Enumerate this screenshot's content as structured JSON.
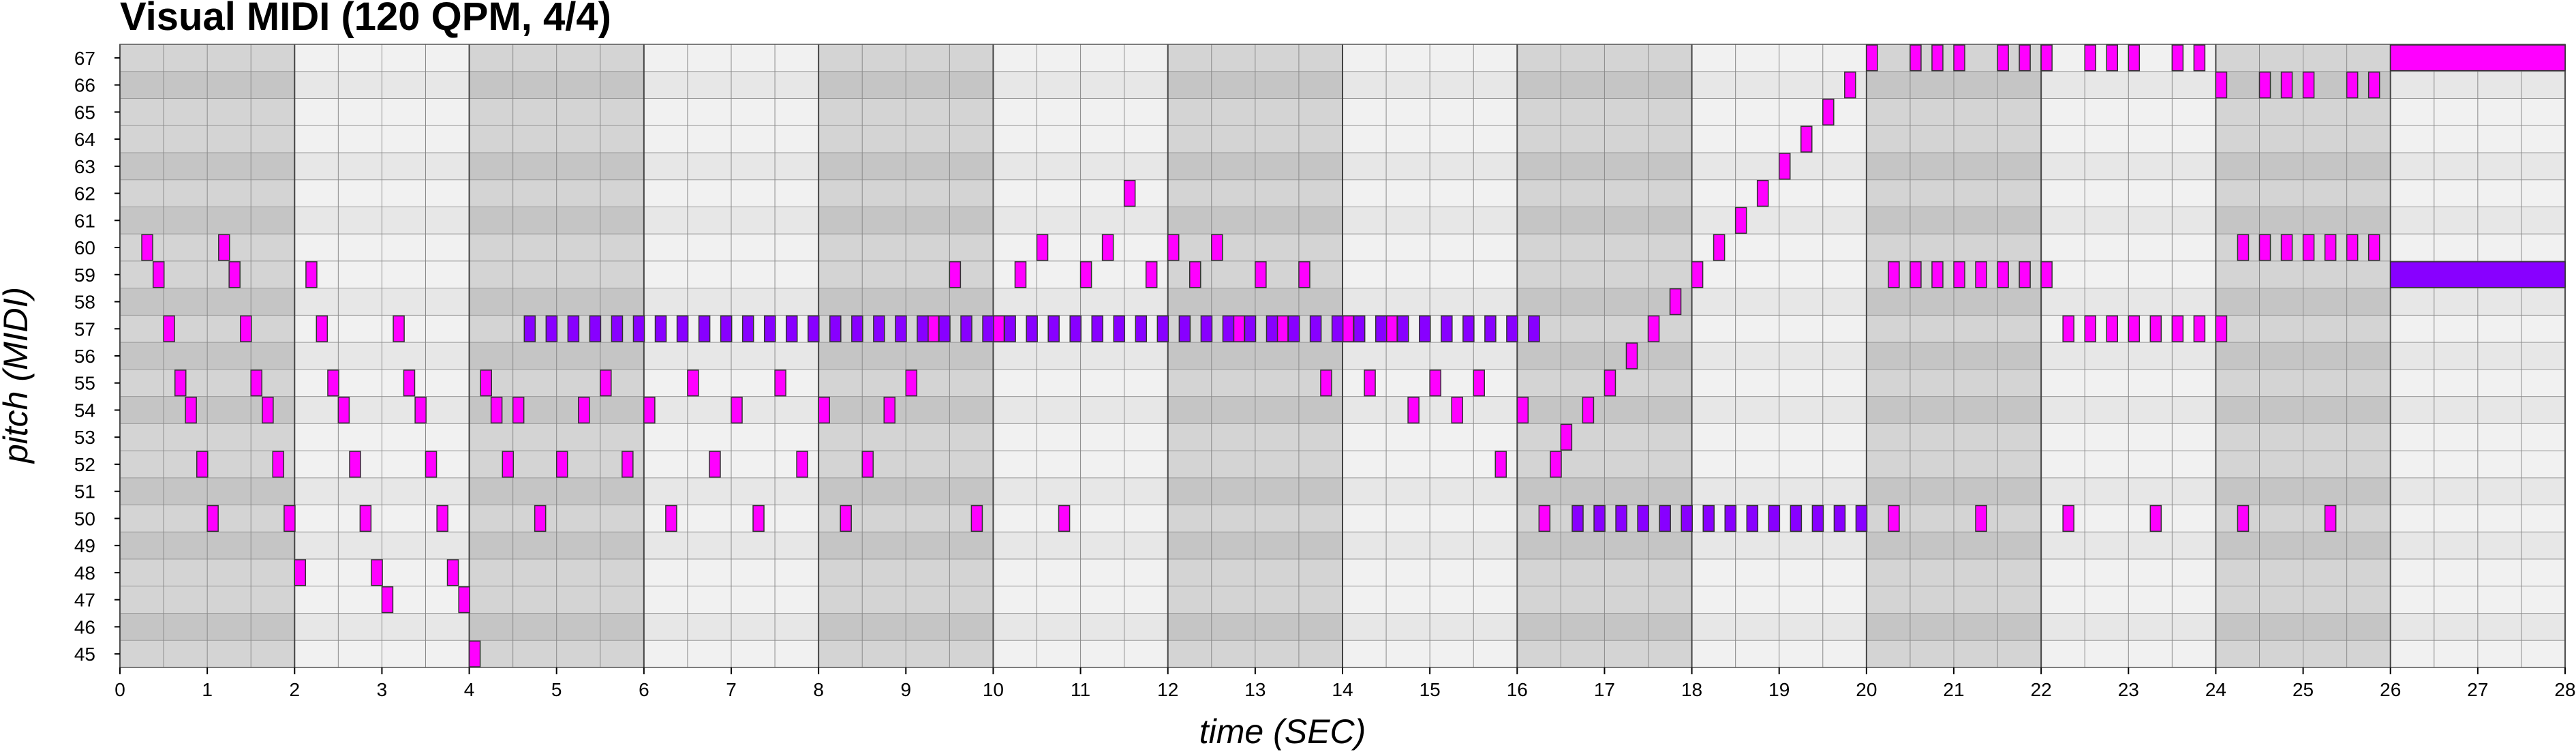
{
  "chart_data": {
    "type": "piano-roll",
    "title": "Visual MIDI (120 QPM, 4/4)",
    "xlabel": "time (SEC)",
    "ylabel": "pitch (MIDI)",
    "xlim": [
      0,
      28
    ],
    "ylim": [
      45,
      67
    ],
    "x_ticks": [
      0,
      1,
      2,
      3,
      4,
      5,
      6,
      7,
      8,
      9,
      10,
      11,
      12,
      13,
      14,
      15,
      16,
      17,
      18,
      19,
      20,
      21,
      22,
      23,
      24,
      25,
      26,
      27,
      28
    ],
    "y_ticks": [
      45,
      46,
      47,
      48,
      49,
      50,
      51,
      52,
      53,
      54,
      55,
      56,
      57,
      58,
      59,
      60,
      61,
      62,
      63,
      64,
      65,
      66,
      67
    ],
    "bar_length_sec": 2,
    "beat_length_sec": 0.5,
    "colors": {
      "note_magenta": "#ff00ff",
      "note_violet": "#8800ff",
      "note_border": "#333333",
      "row_light": "#e5e5e5",
      "row_dark": "#d3d3d3",
      "bar_shade": "#707070"
    },
    "series": [
      {
        "color": "magenta",
        "notes": [
          {
            "t": 0.25,
            "p": 60
          },
          {
            "t": 0.38,
            "p": 59
          },
          {
            "t": 0.5,
            "p": 57
          },
          {
            "t": 0.63,
            "p": 55
          },
          {
            "t": 0.75,
            "p": 54
          },
          {
            "t": 0.88,
            "p": 52
          },
          {
            "t": 1.0,
            "p": 50
          },
          {
            "t": 1.13,
            "p": 60
          },
          {
            "t": 1.25,
            "p": 59
          },
          {
            "t": 1.38,
            "p": 57
          },
          {
            "t": 1.5,
            "p": 55
          },
          {
            "t": 1.63,
            "p": 54
          },
          {
            "t": 1.75,
            "p": 52
          },
          {
            "t": 1.88,
            "p": 50
          },
          {
            "t": 2.0,
            "p": 48
          },
          {
            "t": 2.13,
            "p": 59
          },
          {
            "t": 2.25,
            "p": 57
          },
          {
            "t": 2.38,
            "p": 55
          },
          {
            "t": 2.5,
            "p": 54
          },
          {
            "t": 2.63,
            "p": 52
          },
          {
            "t": 2.75,
            "p": 50
          },
          {
            "t": 2.88,
            "p": 48
          },
          {
            "t": 3.0,
            "p": 47
          },
          {
            "t": 3.13,
            "p": 57
          },
          {
            "t": 3.25,
            "p": 55
          },
          {
            "t": 3.38,
            "p": 54
          },
          {
            "t": 3.5,
            "p": 52
          },
          {
            "t": 3.63,
            "p": 50
          },
          {
            "t": 3.75,
            "p": 48
          },
          {
            "t": 3.88,
            "p": 47
          },
          {
            "t": 4.0,
            "p": 45
          },
          {
            "t": 4.13,
            "p": 55
          },
          {
            "t": 4.25,
            "p": 54
          },
          {
            "t": 4.38,
            "p": 52
          },
          {
            "t": 4.5,
            "p": 54
          },
          {
            "t": 4.75,
            "p": 50
          },
          {
            "t": 5.0,
            "p": 52
          },
          {
            "t": 5.25,
            "p": 54
          },
          {
            "t": 5.5,
            "p": 55
          },
          {
            "t": 5.75,
            "p": 52
          },
          {
            "t": 6.0,
            "p": 54
          },
          {
            "t": 6.25,
            "p": 50
          },
          {
            "t": 6.5,
            "p": 55
          },
          {
            "t": 6.75,
            "p": 52
          },
          {
            "t": 7.0,
            "p": 54
          },
          {
            "t": 7.25,
            "p": 50
          },
          {
            "t": 7.5,
            "p": 55
          },
          {
            "t": 7.75,
            "p": 52
          },
          {
            "t": 8.0,
            "p": 54
          },
          {
            "t": 8.25,
            "p": 50
          },
          {
            "t": 8.5,
            "p": 52
          },
          {
            "t": 8.75,
            "p": 54
          },
          {
            "t": 9.0,
            "p": 55
          },
          {
            "t": 9.25,
            "p": 57
          },
          {
            "t": 9.5,
            "p": 59
          },
          {
            "t": 9.75,
            "p": 50
          },
          {
            "t": 10.0,
            "p": 57
          },
          {
            "t": 10.25,
            "p": 59
          },
          {
            "t": 10.5,
            "p": 60
          },
          {
            "t": 10.75,
            "p": 50
          },
          {
            "t": 11.0,
            "p": 59
          },
          {
            "t": 11.25,
            "p": 60
          },
          {
            "t": 11.5,
            "p": 62
          },
          {
            "t": 11.75,
            "p": 59
          },
          {
            "t": 12.0,
            "p": 60
          },
          {
            "t": 12.25,
            "p": 59
          },
          {
            "t": 12.5,
            "p": 60
          },
          {
            "t": 12.75,
            "p": 57
          },
          {
            "t": 13.0,
            "p": 59
          },
          {
            "t": 13.25,
            "p": 57
          },
          {
            "t": 13.5,
            "p": 59
          },
          {
            "t": 13.75,
            "p": 55
          },
          {
            "t": 14.0,
            "p": 57
          },
          {
            "t": 14.25,
            "p": 55
          },
          {
            "t": 14.5,
            "p": 57
          },
          {
            "t": 14.75,
            "p": 54
          },
          {
            "t": 15.0,
            "p": 55
          },
          {
            "t": 15.25,
            "p": 54
          },
          {
            "t": 15.5,
            "p": 55
          },
          {
            "t": 15.75,
            "p": 52
          },
          {
            "t": 16.0,
            "p": 54
          },
          {
            "t": 16.25,
            "p": 50
          },
          {
            "t": 16.38,
            "p": 52
          },
          {
            "t": 16.5,
            "p": 53
          },
          {
            "t": 16.75,
            "p": 54
          },
          {
            "t": 17.0,
            "p": 55
          },
          {
            "t": 17.25,
            "p": 56
          },
          {
            "t": 17.5,
            "p": 57
          },
          {
            "t": 17.75,
            "p": 58
          },
          {
            "t": 18.0,
            "p": 59
          },
          {
            "t": 18.25,
            "p": 60
          },
          {
            "t": 18.5,
            "p": 61
          },
          {
            "t": 18.75,
            "p": 62
          },
          {
            "t": 19.0,
            "p": 63
          },
          {
            "t": 19.25,
            "p": 64
          },
          {
            "t": 19.5,
            "p": 65
          },
          {
            "t": 19.75,
            "p": 66
          },
          {
            "t": 20.0,
            "p": 67
          },
          {
            "t": 20.25,
            "p": 59
          },
          {
            "t": 20.25,
            "p": 50
          },
          {
            "t": 20.5,
            "p": 59
          },
          {
            "t": 20.5,
            "p": 67
          },
          {
            "t": 20.75,
            "p": 59
          },
          {
            "t": 20.75,
            "p": 67
          },
          {
            "t": 21.0,
            "p": 59
          },
          {
            "t": 21.0,
            "p": 67
          },
          {
            "t": 21.25,
            "p": 59
          },
          {
            "t": 21.25,
            "p": 50
          },
          {
            "t": 21.5,
            "p": 59
          },
          {
            "t": 21.5,
            "p": 67
          },
          {
            "t": 21.75,
            "p": 59
          },
          {
            "t": 21.75,
            "p": 67
          },
          {
            "t": 22.0,
            "p": 59
          },
          {
            "t": 22.0,
            "p": 67
          },
          {
            "t": 22.25,
            "p": 57
          },
          {
            "t": 22.25,
            "p": 50
          },
          {
            "t": 22.5,
            "p": 57
          },
          {
            "t": 22.5,
            "p": 67
          },
          {
            "t": 22.75,
            "p": 57
          },
          {
            "t": 22.75,
            "p": 67
          },
          {
            "t": 23.0,
            "p": 57
          },
          {
            "t": 23.0,
            "p": 67
          },
          {
            "t": 23.25,
            "p": 57
          },
          {
            "t": 23.25,
            "p": 50
          },
          {
            "t": 23.5,
            "p": 57
          },
          {
            "t": 23.5,
            "p": 67
          },
          {
            "t": 23.75,
            "p": 57
          },
          {
            "t": 23.75,
            "p": 67
          },
          {
            "t": 24.0,
            "p": 57
          },
          {
            "t": 24.0,
            "p": 66
          },
          {
            "t": 24.25,
            "p": 60
          },
          {
            "t": 24.25,
            "p": 50
          },
          {
            "t": 24.5,
            "p": 60
          },
          {
            "t": 24.5,
            "p": 66
          },
          {
            "t": 24.75,
            "p": 60
          },
          {
            "t": 24.75,
            "p": 66
          },
          {
            "t": 25.0,
            "p": 60
          },
          {
            "t": 25.0,
            "p": 66
          },
          {
            "t": 25.25,
            "p": 60
          },
          {
            "t": 25.25,
            "p": 50
          },
          {
            "t": 25.5,
            "p": 60
          },
          {
            "t": 25.5,
            "p": 66
          },
          {
            "t": 25.75,
            "p": 60
          },
          {
            "t": 25.75,
            "p": 66
          },
          {
            "t": 26.0,
            "p": 67,
            "d": 2.0
          }
        ]
      },
      {
        "color": "violet",
        "notes": [
          {
            "t": 4.63,
            "p": 57
          },
          {
            "t": 4.88,
            "p": 57
          },
          {
            "t": 5.13,
            "p": 57
          },
          {
            "t": 5.38,
            "p": 57
          },
          {
            "t": 5.63,
            "p": 57
          },
          {
            "t": 5.88,
            "p": 57
          },
          {
            "t": 6.13,
            "p": 57
          },
          {
            "t": 6.38,
            "p": 57
          },
          {
            "t": 6.63,
            "p": 57
          },
          {
            "t": 6.88,
            "p": 57
          },
          {
            "t": 7.13,
            "p": 57
          },
          {
            "t": 7.38,
            "p": 57
          },
          {
            "t": 7.63,
            "p": 57
          },
          {
            "t": 7.88,
            "p": 57
          },
          {
            "t": 8.13,
            "p": 57
          },
          {
            "t": 8.38,
            "p": 57
          },
          {
            "t": 8.63,
            "p": 57
          },
          {
            "t": 8.88,
            "p": 57
          },
          {
            "t": 9.13,
            "p": 57
          },
          {
            "t": 9.38,
            "p": 57
          },
          {
            "t": 9.63,
            "p": 57
          },
          {
            "t": 9.88,
            "p": 57
          },
          {
            "t": 10.13,
            "p": 57
          },
          {
            "t": 10.38,
            "p": 57
          },
          {
            "t": 10.63,
            "p": 57
          },
          {
            "t": 10.88,
            "p": 57
          },
          {
            "t": 11.13,
            "p": 57
          },
          {
            "t": 11.38,
            "p": 57
          },
          {
            "t": 11.63,
            "p": 57
          },
          {
            "t": 11.88,
            "p": 57
          },
          {
            "t": 12.13,
            "p": 57
          },
          {
            "t": 12.38,
            "p": 57
          },
          {
            "t": 12.63,
            "p": 57
          },
          {
            "t": 12.88,
            "p": 57
          },
          {
            "t": 13.13,
            "p": 57
          },
          {
            "t": 13.38,
            "p": 57
          },
          {
            "t": 13.63,
            "p": 57
          },
          {
            "t": 13.88,
            "p": 57
          },
          {
            "t": 14.13,
            "p": 57
          },
          {
            "t": 14.38,
            "p": 57
          },
          {
            "t": 14.63,
            "p": 57
          },
          {
            "t": 14.88,
            "p": 57
          },
          {
            "t": 15.13,
            "p": 57
          },
          {
            "t": 15.38,
            "p": 57
          },
          {
            "t": 15.63,
            "p": 57
          },
          {
            "t": 15.88,
            "p": 57
          },
          {
            "t": 16.13,
            "p": 57
          },
          {
            "t": 16.63,
            "p": 50
          },
          {
            "t": 16.88,
            "p": 50
          },
          {
            "t": 17.13,
            "p": 50
          },
          {
            "t": 17.38,
            "p": 50
          },
          {
            "t": 17.63,
            "p": 50
          },
          {
            "t": 17.88,
            "p": 50
          },
          {
            "t": 18.13,
            "p": 50
          },
          {
            "t": 18.38,
            "p": 50
          },
          {
            "t": 18.63,
            "p": 50
          },
          {
            "t": 18.88,
            "p": 50
          },
          {
            "t": 19.13,
            "p": 50
          },
          {
            "t": 19.38,
            "p": 50
          },
          {
            "t": 19.63,
            "p": 50
          },
          {
            "t": 19.88,
            "p": 50
          },
          {
            "t": 26.0,
            "p": 59,
            "d": 2.0
          }
        ]
      }
    ]
  }
}
